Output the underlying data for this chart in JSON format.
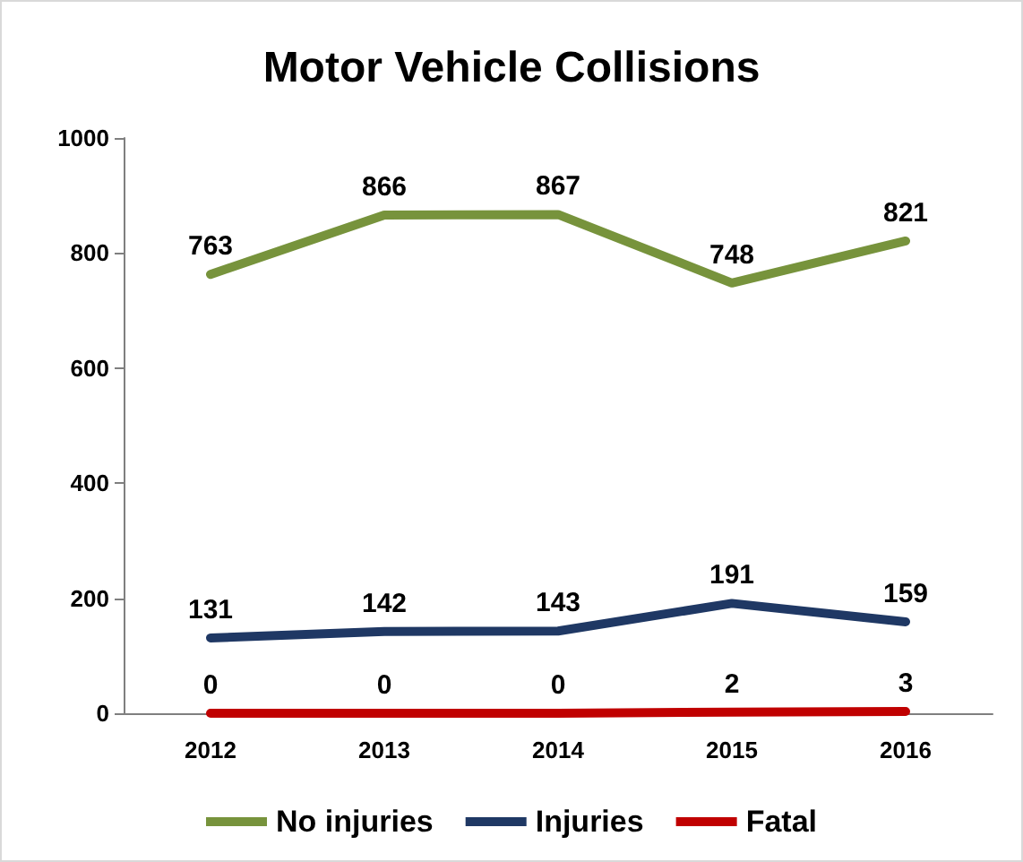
{
  "chart_data": {
    "type": "line",
    "title": "Motor Vehicle Collisions",
    "categories": [
      "2012",
      "2013",
      "2014",
      "2015",
      "2016"
    ],
    "series": [
      {
        "name": "No injuries",
        "color": "#77933c",
        "values": [
          763,
          866,
          867,
          748,
          821
        ]
      },
      {
        "name": "Injuries",
        "color": "#1f3864",
        "values": [
          131,
          142,
          143,
          191,
          159
        ]
      },
      {
        "name": "Fatal",
        "color": "#c00000",
        "values": [
          0,
          0,
          0,
          2,
          3
        ]
      }
    ],
    "ylim": [
      0,
      1000
    ],
    "yticks": [
      0,
      200,
      400,
      600,
      800,
      1000
    ],
    "grid": false,
    "legend": "bottom",
    "marker": "none",
    "line_style": "solid",
    "data_labels": true
  }
}
